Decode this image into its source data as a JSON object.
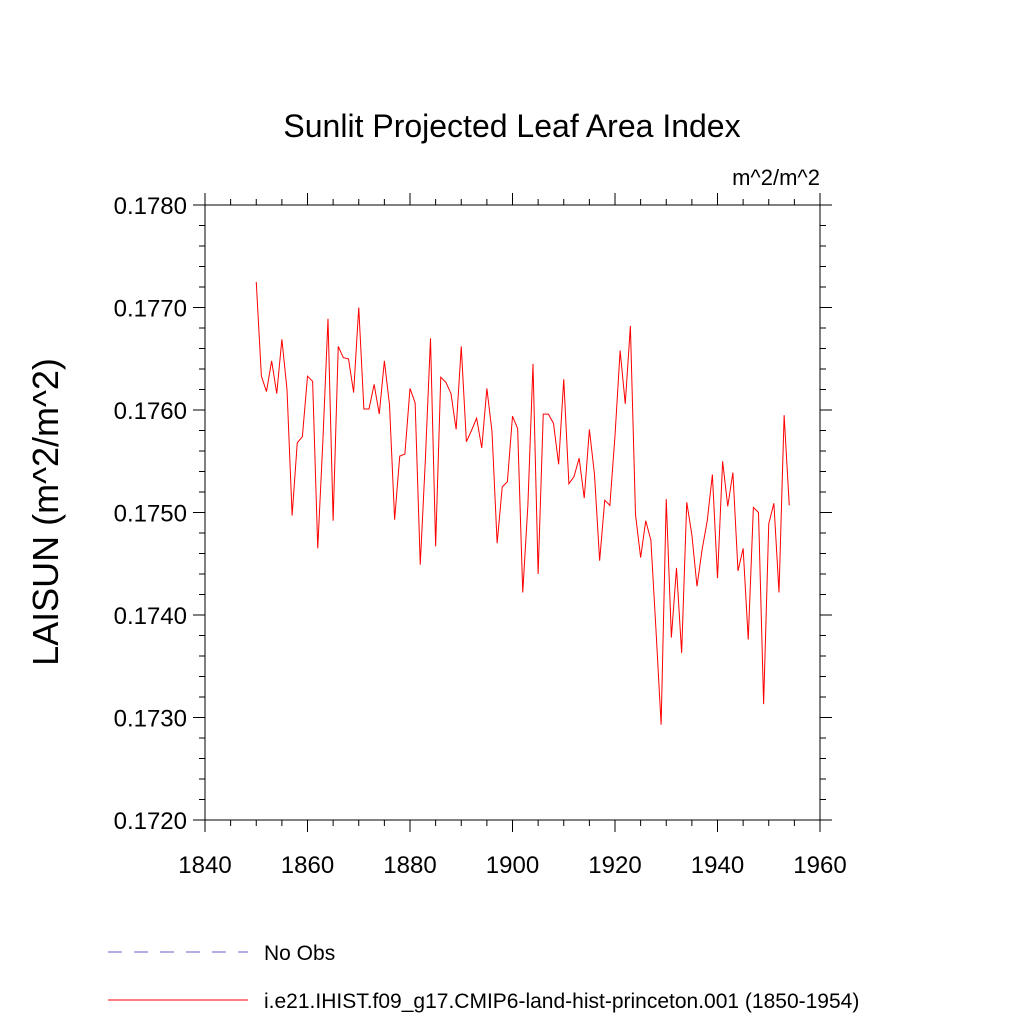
{
  "chart_data": {
    "type": "line",
    "title": "Sunlit Projected Leaf Area Index",
    "units": "m^2/m^2",
    "ylabel": "LAISUN  (m^2/m^2)",
    "xlabel": "",
    "xlim": [
      1840,
      1960
    ],
    "ylim": [
      0.172,
      0.178
    ],
    "xticks": [
      1840,
      1860,
      1880,
      1900,
      1920,
      1940,
      1960
    ],
    "xtick_labels": [
      "1840",
      "1860",
      "1880",
      "1900",
      "1920",
      "1940",
      "1960"
    ],
    "yticks": [
      0.172,
      0.173,
      0.174,
      0.175,
      0.176,
      0.177,
      0.178
    ],
    "ytick_labels": [
      "0.1720",
      "0.1730",
      "0.1740",
      "0.1750",
      "0.1760",
      "0.1770",
      "0.1780"
    ],
    "grid": false,
    "legend_position": "bottom",
    "series": [
      {
        "name": "No Obs",
        "color": "#6a5acd",
        "style": "dashed",
        "x": [],
        "y": []
      },
      {
        "name": "i.e21.IHIST.f09_g17.CMIP6-land-hist-princeton.001 (1850-1954)",
        "color": "#ff0000",
        "style": "solid",
        "x": [
          1850,
          1851,
          1852,
          1853,
          1854,
          1855,
          1856,
          1857,
          1858,
          1859,
          1860,
          1861,
          1862,
          1863,
          1864,
          1865,
          1866,
          1867,
          1868,
          1869,
          1870,
          1871,
          1872,
          1873,
          1874,
          1875,
          1876,
          1877,
          1878,
          1879,
          1880,
          1881,
          1882,
          1883,
          1884,
          1885,
          1886,
          1887,
          1888,
          1889,
          1890,
          1891,
          1892,
          1893,
          1894,
          1895,
          1896,
          1897,
          1898,
          1899,
          1900,
          1901,
          1902,
          1903,
          1904,
          1905,
          1906,
          1907,
          1908,
          1909,
          1910,
          1911,
          1912,
          1913,
          1914,
          1915,
          1916,
          1917,
          1918,
          1919,
          1920,
          1921,
          1922,
          1923,
          1924,
          1925,
          1926,
          1927,
          1928,
          1929,
          1930,
          1931,
          1932,
          1933,
          1934,
          1935,
          1936,
          1937,
          1938,
          1939,
          1940,
          1941,
          1942,
          1943,
          1944,
          1945,
          1946,
          1947,
          1948,
          1949,
          1950,
          1951,
          1952,
          1953,
          1954
        ],
        "y": [
          0.17725,
          0.17633,
          0.17618,
          0.17648,
          0.17616,
          0.17669,
          0.1762,
          0.17497,
          0.17568,
          0.17574,
          0.17633,
          0.17628,
          0.17465,
          0.1757,
          0.17689,
          0.17492,
          0.17662,
          0.17651,
          0.1765,
          0.17617,
          0.177,
          0.17601,
          0.17601,
          0.17625,
          0.17596,
          0.17648,
          0.17605,
          0.17493,
          0.17555,
          0.17557,
          0.17621,
          0.17607,
          0.17449,
          0.17552,
          0.1767,
          0.17467,
          0.17632,
          0.17627,
          0.17616,
          0.17581,
          0.17662,
          0.17569,
          0.1758,
          0.17592,
          0.17563,
          0.17621,
          0.17579,
          0.1747,
          0.17525,
          0.1753,
          0.17594,
          0.17582,
          0.17422,
          0.17507,
          0.17645,
          0.1744,
          0.17596,
          0.17596,
          0.17587,
          0.17547,
          0.1763,
          0.17528,
          0.17535,
          0.17553,
          0.17514,
          0.17581,
          0.17537,
          0.17453,
          0.17512,
          0.17507,
          0.17575,
          0.17658,
          0.17606,
          0.17682,
          0.17498,
          0.17456,
          0.17492,
          0.17473,
          0.17385,
          0.17293,
          0.17513,
          0.17378,
          0.17446,
          0.17363,
          0.1751,
          0.17478,
          0.17428,
          0.17464,
          0.17492,
          0.17537,
          0.17436,
          0.1755,
          0.17506,
          0.17539,
          0.17443,
          0.17465,
          0.17376,
          0.17505,
          0.175,
          0.17313,
          0.17489,
          0.17509,
          0.17422,
          0.17595,
          0.17507
        ]
      }
    ]
  }
}
